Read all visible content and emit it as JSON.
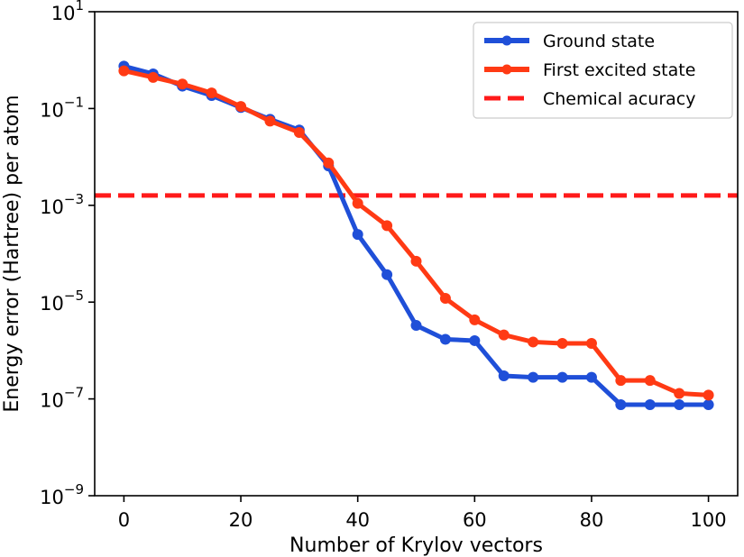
{
  "chart_data": {
    "type": "line",
    "xlabel": "Number of Krylov vectors",
    "ylabel": "Energy error (Hartree) per atom",
    "yscale": "log",
    "xlim": [
      -5,
      105
    ],
    "ylim": [
      1e-09,
      10
    ],
    "xticks": [
      0,
      20,
      40,
      60,
      80,
      100
    ],
    "yticks": [
      {
        "value": 1e-09,
        "base": "10",
        "exp": "−9"
      },
      {
        "value": 1e-07,
        "base": "10",
        "exp": "−7"
      },
      {
        "value": 1e-05,
        "base": "10",
        "exp": "−5"
      },
      {
        "value": 0.001,
        "base": "10",
        "exp": "−3"
      },
      {
        "value": 0.1,
        "base": "10",
        "exp": "−1"
      },
      {
        "value": 10,
        "base": "10",
        "exp": "1"
      }
    ],
    "grid": false,
    "legend_position": "upper-right",
    "series": [
      {
        "name": "Ground state",
        "color": "#1f4fd8",
        "x": [
          0,
          5,
          10,
          15,
          20,
          25,
          30,
          35,
          40,
          45,
          50,
          55,
          60,
          65,
          70,
          75,
          80,
          85,
          90,
          95,
          100
        ],
        "y": [
          0.75,
          0.52,
          0.29,
          0.185,
          0.105,
          0.06,
          0.036,
          0.0065,
          0.00025,
          3.7e-05,
          3.3e-06,
          1.7e-06,
          1.6e-06,
          3e-07,
          2.8e-07,
          2.8e-07,
          2.8e-07,
          7.6e-08,
          7.6e-08,
          7.6e-08,
          7.6e-08
        ]
      },
      {
        "name": "First excited state",
        "color": "#ff3a14",
        "x": [
          0,
          5,
          10,
          15,
          20,
          25,
          30,
          35,
          40,
          45,
          50,
          55,
          60,
          65,
          70,
          75,
          80,
          85,
          90,
          95,
          100
        ],
        "y": [
          0.6,
          0.44,
          0.32,
          0.21,
          0.11,
          0.055,
          0.032,
          0.0075,
          0.0011,
          0.00038,
          7e-05,
          1.2e-05,
          4.3e-06,
          2.1e-06,
          1.5e-06,
          1.4e-06,
          1.4e-06,
          2.4e-07,
          2.4e-07,
          1.3e-07,
          1.2e-07
        ]
      }
    ],
    "reference_lines": [
      {
        "name": "Chemical acuracy",
        "y": 0.0016,
        "style": "dashed",
        "color": "#ff1a1a"
      }
    ]
  }
}
